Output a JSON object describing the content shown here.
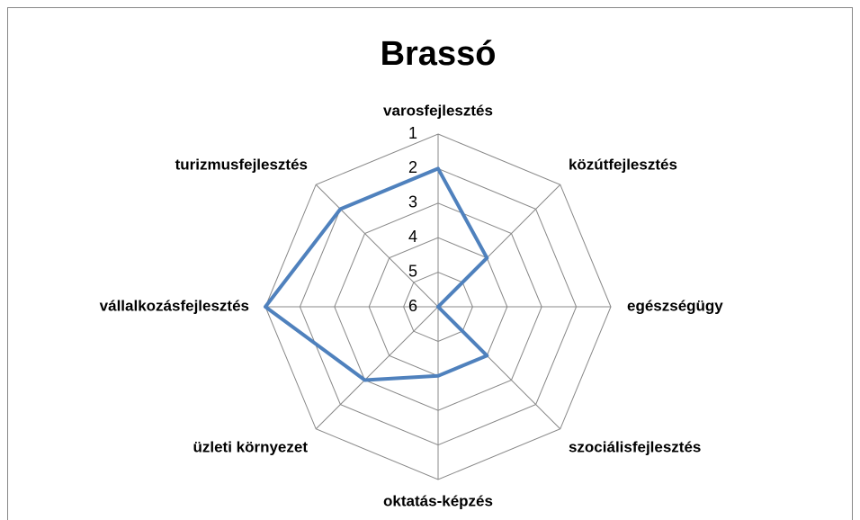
{
  "chart_data": {
    "type": "radar",
    "title": "Brassó",
    "categories": [
      "varosfejlesztés",
      "közútfejlesztés",
      "egészségügy",
      "szociálisfejlesztés",
      "oktatás-képzés",
      "üzleti környezet",
      "vállalkozásfejlesztés",
      "turizmusfejlesztés"
    ],
    "series": [
      {
        "name": "Brassó",
        "color": "#4f81bd",
        "values": [
          2,
          4,
          6,
          4,
          4,
          3,
          1,
          2
        ]
      }
    ],
    "ylim": [
      6,
      1
    ],
    "yticks": [
      1,
      2,
      3,
      4,
      5,
      6
    ],
    "grid": true
  }
}
